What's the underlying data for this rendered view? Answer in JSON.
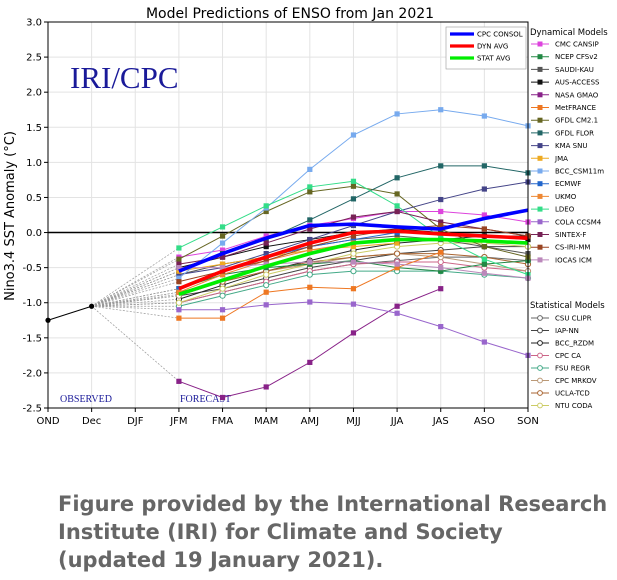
{
  "chart_data": {
    "type": "line",
    "title": "Model Predictions of ENSO from Jan 2021",
    "ylabel": "Nino3.4 SST Anomaly (°C)",
    "xlabel": "",
    "categories": [
      "OND",
      "Dec",
      "DJF",
      "JFM",
      "FMA",
      "MAM",
      "AMJ",
      "MJJ",
      "JJA",
      "JAS",
      "ASO",
      "SON"
    ],
    "ylim": [
      -2.5,
      3.0
    ],
    "yticks": [
      "3.0",
      "2.5",
      "2.0",
      "1.5",
      "1.0",
      "0.5",
      "0.0",
      "-0.5",
      "-1.0",
      "-1.5",
      "-2.0",
      "-2.5"
    ],
    "grid": true,
    "watermark": "IRI/CPC",
    "observed_label": "OBSERVED",
    "forecast_label": "FORECAST",
    "observed": [
      -1.25,
      -1.05
    ],
    "legend_main": [
      {
        "name": "CPC CONSOL",
        "color": "#0000ff"
      },
      {
        "name": "DYN AVG",
        "color": "#ff0000"
      },
      {
        "name": "STAT AVG",
        "color": "#00ee00"
      }
    ],
    "dyn_title": "Dynamical Models",
    "stat_title": "Statistical Models",
    "series_dyn": [
      {
        "name": "CMC CANSIP",
        "color": "#dd44dd",
        "values": [
          -0.35,
          -0.25,
          -0.05,
          0.1,
          0.2,
          0.3,
          0.3,
          0.25,
          0.15
        ]
      },
      {
        "name": "NCEP CFSv2",
        "color": "#228844",
        "values": [
          -0.8,
          -0.6,
          -0.5,
          -0.45,
          -0.4,
          -0.5,
          -0.55,
          -0.45,
          -0.4
        ]
      },
      {
        "name": "SAUDI-KAU",
        "color": "#555555",
        "values": [
          -0.6,
          -0.45,
          -0.35,
          -0.2,
          -0.1,
          -0.05,
          -0.1,
          -0.2,
          -0.3
        ]
      },
      {
        "name": "AUS-ACCESS",
        "color": "#111111",
        "values": [
          -0.5,
          -0.35,
          -0.2,
          -0.1,
          0.0,
          0.05,
          0.0,
          -0.05,
          -0.1
        ]
      },
      {
        "name": "NASA GMAO",
        "color": "#882288",
        "values": [
          -2.12,
          -2.35,
          -2.2,
          -1.85,
          -1.43,
          -1.05,
          -0.8
        ]
      },
      {
        "name": "MetFRANCE",
        "color": "#ee7722",
        "values": [
          -1.22,
          -1.22,
          -0.85,
          -0.78,
          -0.8,
          -0.5,
          -0.28
        ]
      },
      {
        "name": "GFDL CM2.1",
        "color": "#666622",
        "values": [
          -0.38,
          -0.05,
          0.3,
          0.58,
          0.66,
          0.55,
          0.05,
          -0.2,
          -0.35
        ]
      },
      {
        "name": "GFDL FLOR",
        "color": "#226666",
        "values": [
          -0.55,
          -0.3,
          -0.1,
          0.18,
          0.48,
          0.78,
          0.95,
          0.95,
          0.85
        ]
      },
      {
        "name": "KMA SNU",
        "color": "#444488",
        "values": [
          -0.6,
          -0.5,
          -0.3,
          -0.1,
          0.1,
          0.3,
          0.47,
          0.62,
          0.72
        ]
      },
      {
        "name": "JMA",
        "color": "#eeaa22",
        "values": [
          -0.55,
          -0.45,
          -0.35,
          -0.25,
          -0.2,
          -0.15
        ]
      },
      {
        "name": "BCC_CSM11m",
        "color": "#77aaee",
        "values": [
          -0.65,
          -0.15,
          0.35,
          0.9,
          1.39,
          1.69,
          1.75,
          1.66,
          1.52
        ]
      },
      {
        "name": "ECMWF",
        "color": "#2266cc",
        "values": [
          -0.8,
          -0.55,
          -0.35,
          -0.2,
          -0.1,
          0.0
        ]
      },
      {
        "name": "UKMO",
        "color": "#ee8833",
        "values": [
          -0.85,
          -0.6,
          -0.4,
          -0.25,
          -0.15,
          -0.1
        ]
      },
      {
        "name": "LDEO",
        "color": "#33dd88",
        "values": [
          -0.22,
          0.08,
          0.38,
          0.65,
          0.73,
          0.38,
          -0.07,
          -0.38,
          -0.6
        ]
      },
      {
        "name": "COLA CCSM4",
        "color": "#9966cc",
        "values": [
          -1.1,
          -1.1,
          -1.03,
          -0.99,
          -1.02,
          -1.15,
          -1.34,
          -1.56,
          -1.75
        ]
      },
      {
        "name": "SINTEX-F",
        "color": "#772255",
        "values": [
          -0.45,
          -0.35,
          -0.15,
          0.05,
          0.22,
          0.3,
          0.15,
          0.05,
          -0.05
        ]
      },
      {
        "name": "CS-IRI-MM",
        "color": "#994422",
        "values": [
          -0.7,
          -0.55,
          -0.4,
          -0.2,
          -0.05,
          0.05,
          0.1,
          0.05,
          -0.05
        ]
      },
      {
        "name": "IOCAS ICM",
        "color": "#bb88bb",
        "values": [
          -0.5,
          -0.5,
          -0.45,
          -0.42,
          -0.42,
          -0.45,
          -0.5,
          -0.58,
          -0.65
        ]
      }
    ],
    "series_stat": [
      {
        "name": "CSU CLIPR",
        "color": "#666666",
        "values": [
          -1.0,
          -0.85,
          -0.7,
          -0.55,
          -0.45,
          -0.4,
          -0.35,
          -0.35,
          -0.4
        ]
      },
      {
        "name": "IAP-NN",
        "color": "#444444",
        "values": [
          -0.9,
          -0.8,
          -0.65,
          -0.5,
          -0.4,
          -0.3,
          -0.25,
          -0.2,
          -0.2
        ]
      },
      {
        "name": "BCC_RZDM",
        "color": "#222222",
        "values": [
          -0.95,
          -0.75,
          -0.55,
          -0.4,
          -0.25,
          -0.15,
          -0.1,
          -0.05,
          -0.05
        ]
      },
      {
        "name": "CPC CA",
        "color": "#cc6688",
        "values": [
          -1.0,
          -0.85,
          -0.7,
          -0.55,
          -0.45,
          -0.42,
          -0.42,
          -0.5,
          -0.55
        ]
      },
      {
        "name": "FSU REGR",
        "color": "#44aa88",
        "values": [
          -1.05,
          -0.9,
          -0.75,
          -0.6,
          -0.55,
          -0.55,
          -0.55,
          -0.6,
          -0.65
        ]
      },
      {
        "name": "CPC MRKOV",
        "color": "#bb9977",
        "values": [
          -0.9,
          -0.7,
          -0.55,
          -0.45,
          -0.35,
          -0.3,
          -0.35,
          -0.45,
          -0.55
        ]
      },
      {
        "name": "UCLA-TCD",
        "color": "#aa6633",
        "values": [
          -0.85,
          -0.7,
          -0.55,
          -0.42,
          -0.35,
          -0.3,
          -0.3,
          -0.35,
          -0.45
        ]
      },
      {
        "name": "NTU CODA",
        "color": "#cccc66",
        "values": [
          -1.0,
          -0.8,
          -0.6,
          -0.45,
          -0.3,
          -0.2,
          -0.15,
          -0.15,
          -0.2
        ]
      }
    ],
    "series_avg": [
      {
        "name": "CPC CONSOL",
        "color": "#0000ff",
        "values": [
          -0.55,
          -0.3,
          -0.08,
          0.1,
          0.12,
          0.08,
          0.05,
          0.2,
          0.32
        ]
      },
      {
        "name": "DYN AVG",
        "color": "#ff0000",
        "values": [
          -0.8,
          -0.55,
          -0.35,
          -0.15,
          0.0,
          0.02,
          -0.02,
          -0.05,
          -0.08
        ]
      },
      {
        "name": "STAT AVG",
        "color": "#00ee00",
        "values": [
          -0.88,
          -0.68,
          -0.48,
          -0.3,
          -0.15,
          -0.1,
          -0.1,
          -0.12,
          -0.15
        ]
      }
    ]
  },
  "caption": {
    "line1": "Figure provided by the International Research",
    "line2": "Institute (IRI) for Climate and Society",
    "line3": "(updated 19 January 2021)."
  }
}
